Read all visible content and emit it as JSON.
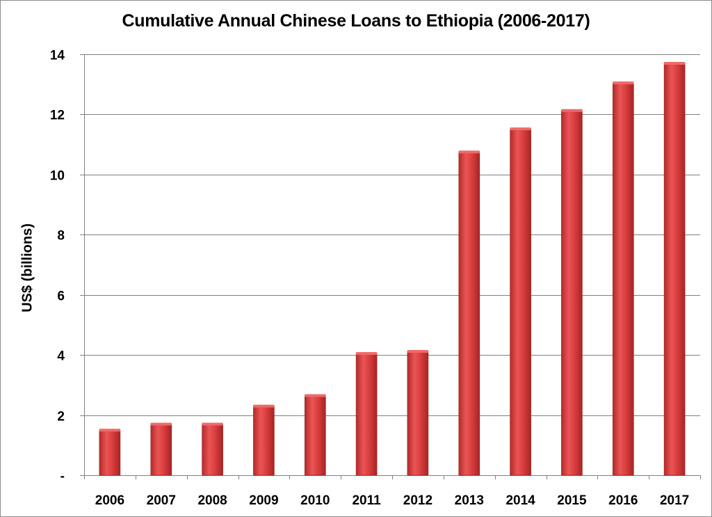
{
  "chart_data": {
    "type": "bar",
    "title": "Cumulative Annual Chinese Loans to Ethiopia (2006-2017)",
    "xlabel": "",
    "ylabel": "US$ (billions)",
    "categories": [
      "2006",
      "2007",
      "2008",
      "2009",
      "2010",
      "2011",
      "2012",
      "2013",
      "2014",
      "2015",
      "2016",
      "2017"
    ],
    "values": [
      1.5,
      1.7,
      1.7,
      2.3,
      2.65,
      4.05,
      4.12,
      10.75,
      11.52,
      12.13,
      13.05,
      13.7
    ],
    "ylim": [
      0,
      14
    ],
    "yticks": [
      0,
      2,
      4,
      6,
      8,
      10,
      12,
      14
    ],
    "ytick_labels": [
      "-",
      "2",
      "4",
      "6",
      "8",
      "10",
      "12",
      "14"
    ],
    "grid": true,
    "legend": "none",
    "colors": {
      "bar": "#d63b3b",
      "bar_light": "#ee6a6a",
      "bar_dark": "#a82424",
      "grid": "#7f7f7f"
    }
  }
}
